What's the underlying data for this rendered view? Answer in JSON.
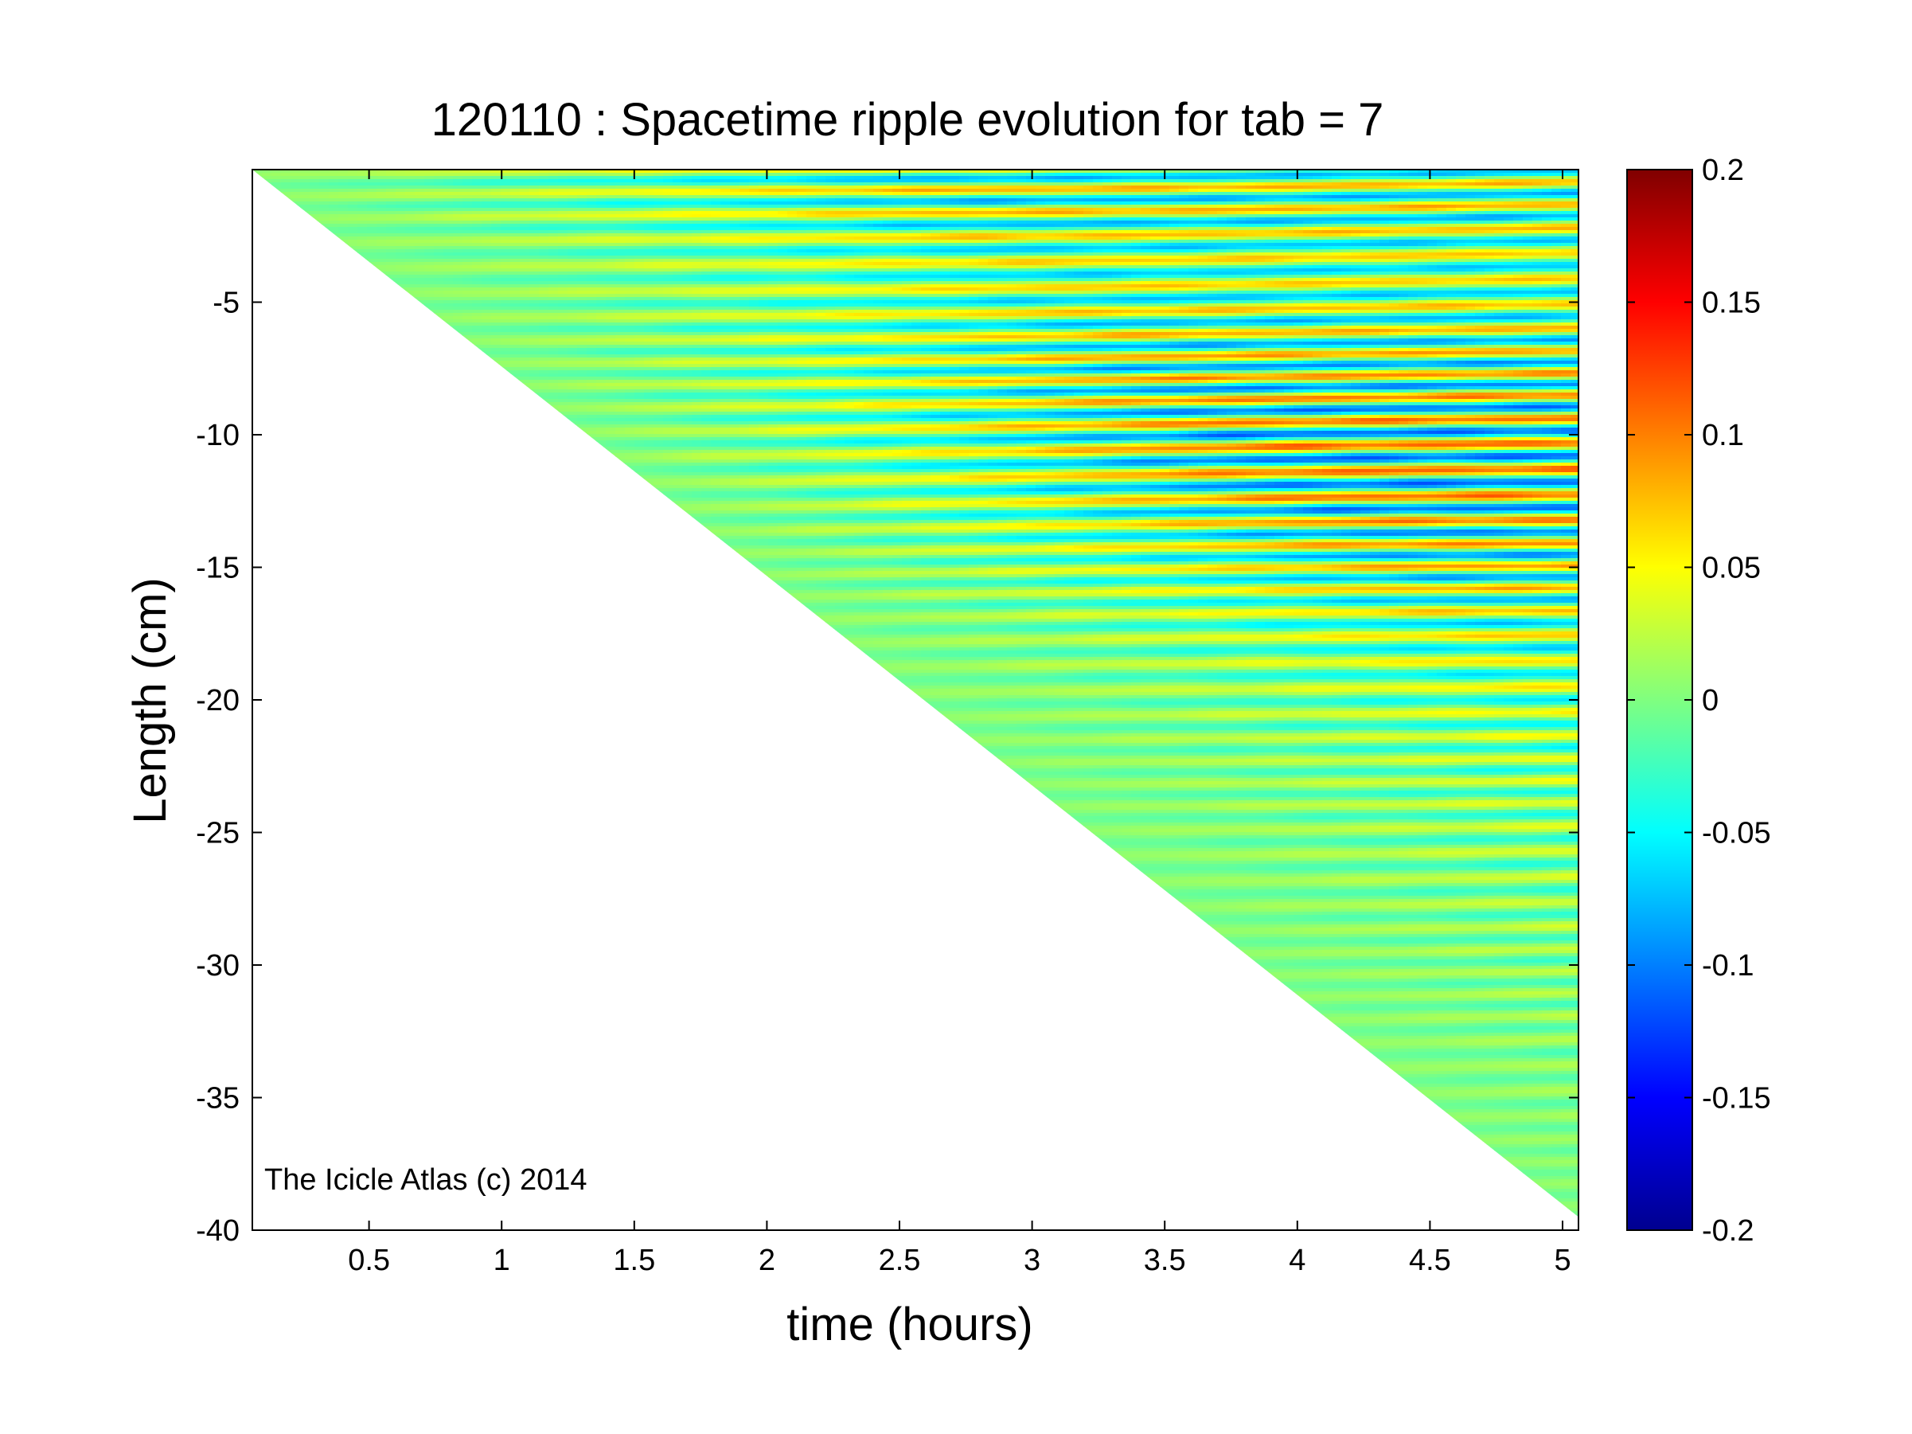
{
  "watermark": "The Icicle Atlas (c) 2014",
  "chart_data": {
    "type": "heatmap",
    "title": "120110 : Spacetime ripple evolution for tab = 7",
    "xlabel": "time (hours)",
    "ylabel": "Length (cm)",
    "xlim": [
      0.06,
      5.06
    ],
    "ylim": [
      -40,
      0
    ],
    "xticks": [
      0.5,
      1,
      1.5,
      2,
      2.5,
      3,
      3.5,
      4,
      4.5,
      5
    ],
    "xtick_labels": [
      "0.5",
      "1",
      "1.5",
      "2",
      "2.5",
      "3",
      "3.5",
      "4",
      "4.5",
      "5"
    ],
    "yticks": [
      -5,
      -10,
      -15,
      -20,
      -25,
      -30,
      -35,
      -40
    ],
    "ytick_labels": [
      "-5",
      "-10",
      "-15",
      "-20",
      "-25",
      "-30",
      "-35",
      "-40"
    ],
    "colorbar": {
      "colormap": "jet",
      "clim": [
        -0.2,
        0.2
      ],
      "ticks": [
        0.2,
        0.15,
        0.1,
        0.05,
        0,
        -0.05,
        -0.1,
        -0.15,
        -0.2
      ],
      "tick_labels": [
        "0.2",
        "0.15",
        "0.1",
        "0.05",
        "0",
        "-0.05",
        "-0.1",
        "-0.15",
        "-0.2"
      ]
    },
    "data_region": {
      "description_boundary": "icicle tip length grows linearly with time",
      "tip_length_at_start_cm": 0,
      "tip_length_at_end_cm": -39.5,
      "time_start_hours": 0.06,
      "time_end_hours": 5.06
    },
    "ripple_wavelength_cm": 0.9,
    "grid": false
  }
}
